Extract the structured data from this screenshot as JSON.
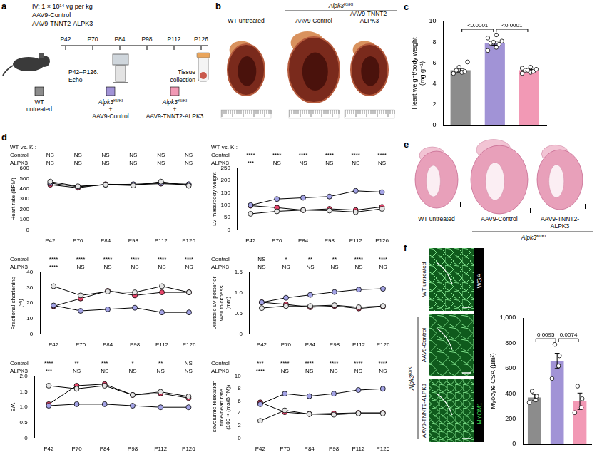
{
  "panels": {
    "a": {
      "panel_label": "a",
      "dose": "IV: 1 × 10¹⁴ vg per kg",
      "vectors": [
        "AAV9-Control",
        "AAV9-TNNT2-ALPK3"
      ],
      "timepoints": [
        "P42",
        "P70",
        "P84",
        "P98",
        "P112",
        "P126"
      ],
      "echo": [
        "P42–P126:",
        "Echo"
      ],
      "tissue": [
        "Tissue",
        "collection"
      ],
      "groups": [
        {
          "lines": [
            "WT",
            "untreated"
          ],
          "color": "#8c8c8c"
        },
        {
          "genotype": {
            "gene": "Alpk3",
            "allele": "KI/KI"
          },
          "lines": [
            "+",
            "AAV9-Control"
          ],
          "color": "#a193d6"
        },
        {
          "genotype": {
            "gene": "Alpk3",
            "allele": "KI/KI"
          },
          "lines": [
            "+",
            "AAV9-TNNT2-ALPK3"
          ],
          "color": "#f299b5"
        }
      ]
    },
    "b": {
      "panel_label": "b",
      "groups": [
        "WT untreated",
        "AAV9-Control",
        "AAV9-TNNT2-ALPK3"
      ],
      "bracket": {
        "gene": "Alpk3",
        "allele": "KI/KI"
      }
    },
    "e": {
      "panel_label": "e",
      "groups": [
        "WT untreated",
        "AAV9-Control",
        "AAV9-TNNT2-ALPK3"
      ],
      "bracket": {
        "gene": "Alpk3",
        "allele": "KI/KI"
      }
    },
    "f": {
      "panel_label": "f",
      "groups": [
        "WT untreated",
        "AAV9-Control",
        "AAV9-TNNT2-ALPK3"
      ],
      "bracket": {
        "gene": "Alpk3",
        "allele": "KI/KI"
      },
      "stains": [
        {
          "label": "WGA",
          "color": "#ffffff"
        },
        {
          "label": "MYOM1",
          "color": "#39d24a"
        }
      ]
    }
  },
  "chart_data": [
    {
      "panel_label": "c",
      "type": "bar",
      "y_label": "Heart weight/body weight (mg g⁻¹)",
      "categories": [
        "WT untreated",
        "AAV9-Control",
        "AAV9-TNNT2-ALPK3"
      ],
      "values": [
        5.3,
        7.9,
        5.3
      ],
      "errors": [
        0.17,
        0.2,
        0.08
      ],
      "points": [
        [
          5.0,
          5.1,
          5.2,
          5.3,
          5.6,
          6.1
        ],
        [
          7.2,
          7.5,
          7.8,
          7.9,
          8.0,
          8.1,
          8.4,
          8.7
        ],
        [
          5.0,
          5.1,
          5.2,
          5.3,
          5.3,
          5.4,
          5.5,
          5.6
        ]
      ],
      "colors": [
        "#8c8c8c",
        "#a193d6",
        "#f299b5"
      ],
      "ylim": [
        0,
        10
      ],
      "yticks": [
        0,
        2,
        4,
        6,
        8,
        10
      ],
      "grid": false,
      "tick_labels": "y",
      "comparisons": [
        {
          "between": [
            "WT untreated",
            "AAV9-Control"
          ],
          "label": "<0.0001"
        },
        {
          "between": [
            "AAV9-Control",
            "AAV9-TNNT2-ALPK3"
          ],
          "label": "<0.0001"
        }
      ]
    },
    {
      "panel_label": "d",
      "type": "line",
      "y_label": "Heart rate (BPM)",
      "categories": [
        "P42",
        "P70",
        "P84",
        "P98",
        "P112",
        "P126"
      ],
      "series": [
        {
          "name": "WT untreated",
          "color": "#e6e6e6",
          "marker": "circle",
          "values": [
            470,
            425,
            440,
            432,
            470,
            430
          ]
        },
        {
          "name": "AAV9-Control",
          "color": "#a3a3e6",
          "marker": "circle",
          "values": [
            455,
            420,
            440,
            445,
            455,
            445
          ]
        },
        {
          "name": "AAV9-TNNT2-ALPK3",
          "color": "#e8456b",
          "marker": "circle",
          "values": [
            440,
            410,
            445,
            440,
            450,
            440
          ]
        }
      ],
      "ylim": [
        0,
        600
      ],
      "yticks": [
        0,
        100,
        200,
        300,
        400,
        500,
        600
      ],
      "grid": false,
      "significance": {
        "header": "WT vs. KI:",
        "rows": [
          {
            "name": "Control",
            "labels": [
              "NS",
              "NS",
              "NS",
              "NS",
              "NS",
              "NS"
            ]
          },
          {
            "name": "ALPK3",
            "labels": [
              "NS",
              "NS",
              "NS",
              "NS",
              "NS",
              "NS"
            ]
          }
        ]
      }
    },
    {
      "type": "line",
      "y_label": "LV mass/body weight",
      "categories": [
        "P42",
        "P70",
        "P84",
        "P98",
        "P112",
        "P126"
      ],
      "series": [
        {
          "name": "WT untreated",
          "color": "#e6e6e6",
          "marker": "circle",
          "values": [
            65,
            75,
            80,
            78,
            72,
            85
          ]
        },
        {
          "name": "AAV9-Control",
          "color": "#a3a3e6",
          "marker": "circle",
          "values": [
            100,
            125,
            130,
            135,
            158,
            153
          ]
        },
        {
          "name": "AAV9-TNNT2-ALPK3",
          "color": "#e8456b",
          "marker": "circle",
          "values": [
            98,
            90,
            80,
            85,
            80,
            93
          ]
        }
      ],
      "ylim": [
        0,
        250
      ],
      "yticks": [
        0,
        50,
        100,
        150,
        200,
        250
      ],
      "grid": false,
      "significance": {
        "header": "WT vs. KI:",
        "rows": [
          {
            "name": "Control",
            "labels": [
              "****",
              "****",
              "****",
              "****",
              "****",
              "****"
            ]
          },
          {
            "name": "ALPK3",
            "labels": [
              "***",
              "NS",
              "NS",
              "NS",
              "NS",
              "NS"
            ]
          }
        ]
      }
    },
    {
      "type": "line",
      "y_label": "Fractional shortening (%)",
      "categories": [
        "P42",
        "P70",
        "P84",
        "P98",
        "P112",
        "P126"
      ],
      "series": [
        {
          "name": "WT untreated",
          "color": "#e6e6e6",
          "marker": "circle",
          "values": [
            31,
            25,
            27.5,
            27,
            31,
            27
          ]
        },
        {
          "name": "AAV9-Control",
          "color": "#a3a3e6",
          "marker": "circle",
          "values": [
            18.5,
            15,
            16,
            17,
            14,
            14
          ]
        },
        {
          "name": "AAV9-TNNT2-ALPK3",
          "color": "#e8456b",
          "marker": "circle",
          "values": [
            18,
            23,
            28,
            25,
            27,
            27
          ]
        }
      ],
      "ylim": [
        0,
        40
      ],
      "yticks": [
        0,
        10,
        20,
        30,
        40
      ],
      "grid": false,
      "significance": {
        "rows": [
          {
            "name": "Control",
            "labels": [
              "****",
              "****",
              "****",
              "****",
              "****",
              "****"
            ]
          },
          {
            "name": "ALPK3",
            "labels": [
              "****",
              "NS",
              "NS",
              "NS",
              "NS",
              "NS"
            ]
          }
        ]
      }
    },
    {
      "type": "line",
      "y_label": "Diastolic LV posterior wall thickness (mm)",
      "categories": [
        "P42",
        "P70",
        "P84",
        "P98",
        "P112",
        "P126"
      ],
      "series": [
        {
          "name": "WT untreated",
          "color": "#e6e6e6",
          "marker": "circle",
          "values": [
            0.63,
            0.68,
            0.68,
            0.7,
            0.65,
            0.68
          ]
        },
        {
          "name": "AAV9-Control",
          "color": "#a3a3e6",
          "marker": "circle",
          "values": [
            0.77,
            0.88,
            0.95,
            1.02,
            1.08,
            1.1
          ]
        },
        {
          "name": "AAV9-TNNT2-ALPK3",
          "color": "#e8456b",
          "marker": "circle",
          "values": [
            0.77,
            0.72,
            0.65,
            0.68,
            0.62,
            0.67
          ]
        }
      ],
      "ylim": [
        0,
        1.5
      ],
      "yticks": [
        0,
        0.5,
        {
          "value": 1,
          "label": "1.0"
        },
        1.5
      ],
      "grid": false,
      "significance": {
        "rows": [
          {
            "name": "Control",
            "labels": [
              "NS",
              "*",
              "**",
              "**",
              "****",
              "****"
            ]
          },
          {
            "name": "ALPK3",
            "labels": [
              "NS",
              "NS",
              "NS",
              "NS",
              "NS",
              "NS"
            ]
          }
        ]
      }
    },
    {
      "type": "line",
      "y_label": "E/A",
      "categories": [
        "P42",
        "P70",
        "P84",
        "P98",
        "P112",
        "P126"
      ],
      "series": [
        {
          "name": "WT untreated",
          "color": "#e6e6e6",
          "marker": "circle",
          "values": [
            1.7,
            1.6,
            1.7,
            1.4,
            1.5,
            1.35
          ]
        },
        {
          "name": "AAV9-Control",
          "color": "#a3a3e6",
          "marker": "circle",
          "values": [
            1.05,
            1.1,
            1.1,
            1.05,
            1.0,
            1.0
          ]
        },
        {
          "name": "AAV9-TNNT2-ALPK3",
          "color": "#e8456b",
          "marker": "circle",
          "values": [
            1.1,
            1.7,
            1.75,
            1.4,
            1.45,
            1.3
          ]
        }
      ],
      "ylim": [
        0,
        2
      ],
      "yticks": [
        0,
        0.5,
        {
          "value": 1,
          "label": "1.0"
        },
        1.5,
        {
          "value": 2,
          "label": "2.0"
        }
      ],
      "grid": false,
      "significance": {
        "rows": [
          {
            "name": "Control",
            "labels": [
              "****",
              "**",
              "***",
              "*",
              "**",
              "NS"
            ]
          },
          {
            "name": "ALPK3",
            "labels": [
              "***",
              "NS",
              "NS",
              "NS",
              "NS",
              "NS"
            ]
          }
        ]
      }
    },
    {
      "type": "line",
      "y_label": "Isovolumic relaxation time/heart rate (100 × (ms/BPM))",
      "categories": [
        "P42",
        "P70",
        "P84",
        "P98",
        "P112",
        "P126"
      ],
      "series": [
        {
          "name": "WT untreated",
          "color": "#e6e6e6",
          "marker": "circle",
          "values": [
            2.8,
            4.5,
            3.9,
            3.8,
            4.0,
            4.0
          ]
        },
        {
          "name": "AAV9-Control",
          "color": "#a3a3e6",
          "marker": "circle",
          "values": [
            5.5,
            7.2,
            6.8,
            7.2,
            7.8,
            8.0
          ]
        },
        {
          "name": "AAV9-TNNT2-ALPK3",
          "color": "#e8456b",
          "marker": "circle",
          "values": [
            5.8,
            4.2,
            3.9,
            4.0,
            4.1,
            4.1
          ]
        }
      ],
      "ylim": [
        0,
        10
      ],
      "yticks": [
        0,
        2,
        4,
        6,
        8,
        10
      ],
      "grid": false,
      "significance": {
        "rows": [
          {
            "name": "Control",
            "labels": [
              "***",
              "****",
              "****",
              "****",
              "****",
              "****"
            ]
          },
          {
            "name": "ALPK3",
            "labels": [
              "****",
              "NS",
              "NS",
              "NS",
              "NS",
              "NS"
            ]
          }
        ]
      }
    },
    {
      "type": "bar",
      "y_label": "Myocyte CSA (µm²)",
      "categories": [
        "WT untreated",
        "AAV9-Control",
        "AAV9-TNNT2-ALPK3"
      ],
      "values": [
        370,
        660,
        340
      ],
      "errors": [
        25,
        60,
        65
      ],
      "points": [
        [
          330,
          350,
          380,
          420
        ],
        [
          520,
          620,
          700,
          790
        ],
        [
          250,
          290,
          360,
          460
        ]
      ],
      "colors": [
        "#8c8c8c",
        "#a193d6",
        "#f299b5"
      ],
      "ylim": [
        0,
        1000
      ],
      "yticks": [
        0,
        200,
        400,
        600,
        800,
        {
          "value": 1000,
          "label": "1,000"
        }
      ],
      "grid": false,
      "tick_labels": "y",
      "comparisons": [
        {
          "between": [
            "WT untreated",
            "AAV9-Control"
          ],
          "label": "0.0095"
        },
        {
          "between": [
            "AAV9-Control",
            "AAV9-TNNT2-ALPK3"
          ],
          "label": "0.0074"
        }
      ]
    }
  ]
}
